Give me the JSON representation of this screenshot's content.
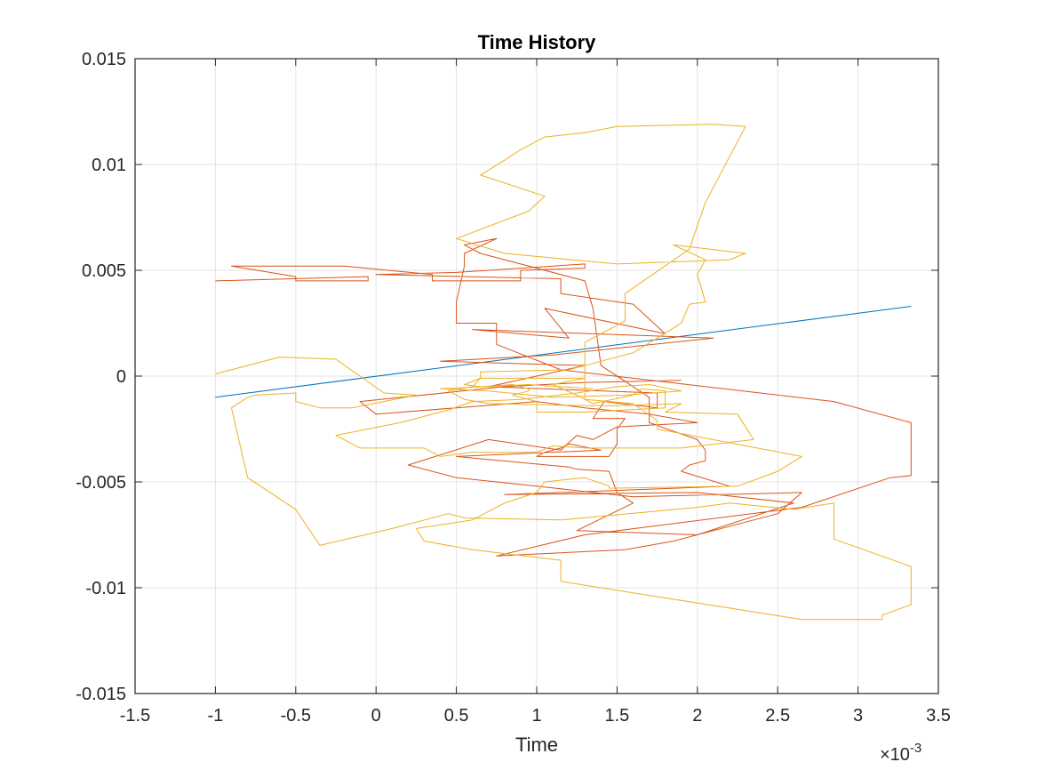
{
  "chart_data": {
    "type": "line",
    "title": "Time History",
    "xlabel": "Time",
    "ylabel": "",
    "x_exponent_label": "×10",
    "x_exponent_power": "-3",
    "xlim": [
      -1.5,
      3.5
    ],
    "ylim": [
      -0.015,
      0.015
    ],
    "x_ticks": [
      -1.5,
      -1,
      -0.5,
      0,
      0.5,
      1,
      1.5,
      2,
      2.5,
      3,
      3.5
    ],
    "x_tick_labels": [
      "-1.5",
      "-1",
      "-0.5",
      "0",
      "0.5",
      "1",
      "1.5",
      "2",
      "2.5",
      "3",
      "3.5"
    ],
    "y_ticks": [
      -0.015,
      -0.01,
      -0.005,
      0,
      0.005,
      0.01,
      0.015
    ],
    "y_tick_labels": [
      "-0.015",
      "-0.01",
      "-0.005",
      "0",
      "0.005",
      "0.01",
      "0.015"
    ],
    "grid": true,
    "colors": {
      "series_1": "#0072BD",
      "series_2": "#D95319",
      "series_3": "#EDB120"
    },
    "series": [
      {
        "color": "#0072BD",
        "x": [
          -1.0,
          3.33
        ],
        "values": [
          -0.001,
          0.0033
        ]
      },
      {
        "color": "#D95319",
        "x": [
          -1.0,
          -0.05,
          -0.05,
          -0.5,
          -0.5,
          -0.9,
          -0.2,
          0.35,
          0.35,
          0.9,
          0.9,
          1.3,
          1.3,
          0.5,
          0.0,
          1.15,
          1.15,
          1.6,
          1.8,
          1.05,
          1.2,
          0.6,
          2.1,
          1.1,
          0.4,
          1.3,
          0.7,
          1.75,
          1.75,
          1.42,
          1.35,
          1.55,
          1.5,
          1.5,
          1.45,
          1.0,
          1.05,
          1.15,
          1.2,
          1.4,
          0.5,
          1.2,
          1.25,
          1.45,
          1.5,
          1.6,
          1.25,
          2.0,
          2.6,
          2.0,
          0.8,
          2.2,
          1.9,
          1.95,
          2.05,
          2.05,
          2.0,
          1.7,
          1.7,
          1.4,
          1.35,
          1.3,
          0.65,
          0.55,
          0.75,
          0.55,
          0.55,
          0.5,
          0.5,
          0.75,
          0.75,
          1.15,
          2.85,
          3.33,
          3.33,
          3.2,
          2.65,
          1.3,
          0.75,
          1.55,
          1.85,
          2.5,
          2.65,
          1.6,
          1.0,
          0.5,
          0.2,
          0.7,
          1.15,
          1.25,
          1.35,
          1.5,
          2.0,
          1.7,
          1.3,
          1.0,
          0.5,
          0.0,
          -0.1,
          0.8,
          1.3,
          1.9
        ],
        "values": [
          0.0045,
          0.0047,
          0.0045,
          0.0045,
          0.0047,
          0.0052,
          0.0052,
          0.0048,
          0.0045,
          0.0045,
          0.005,
          0.0051,
          0.0053,
          0.0049,
          0.0048,
          0.0046,
          0.0039,
          0.0034,
          0.002,
          0.0032,
          0.0018,
          0.0022,
          0.0018,
          0.001,
          0.0007,
          0.0005,
          -0.0005,
          -0.0008,
          -0.0015,
          -0.0012,
          -0.002,
          -0.002,
          -0.0025,
          -0.0032,
          -0.0038,
          -0.0038,
          -0.0036,
          -0.0034,
          -0.0032,
          -0.0035,
          -0.0038,
          -0.0043,
          -0.0044,
          -0.0045,
          -0.0055,
          -0.006,
          -0.0073,
          -0.0075,
          -0.006,
          -0.0055,
          -0.0056,
          -0.0052,
          -0.0045,
          -0.0042,
          -0.004,
          -0.0035,
          -0.003,
          -0.0022,
          -0.001,
          0.0005,
          0.0032,
          0.0045,
          0.0058,
          0.0062,
          0.0065,
          0.0058,
          0.0052,
          0.0035,
          0.0025,
          0.0025,
          0.0015,
          0.0003,
          -0.0012,
          -0.0022,
          -0.0047,
          -0.0048,
          -0.0062,
          -0.0075,
          -0.0085,
          -0.0082,
          -0.0078,
          -0.0065,
          -0.0055,
          -0.0057,
          -0.0052,
          -0.0048,
          -0.0042,
          -0.003,
          -0.0035,
          -0.0028,
          -0.003,
          -0.0024,
          -0.0022,
          -0.0018,
          -0.0015,
          -0.0012,
          -0.0015,
          -0.0018,
          -0.0012,
          -0.0005,
          -0.0003,
          -0.0002
        ]
      },
      {
        "color": "#EDB120",
        "x": [
          -1.0,
          -0.6,
          -0.25,
          0.05,
          0.25,
          -0.15,
          -0.35,
          -0.5,
          -0.5,
          -0.75,
          -0.8,
          -0.9,
          -0.8,
          -0.5,
          -0.35,
          0.1,
          0.45,
          0.55,
          1.15,
          2.0,
          2.2,
          2.6,
          2.85,
          2.85,
          3.33,
          3.33,
          3.15,
          3.15,
          2.65,
          1.15,
          1.15,
          0.6,
          0.3,
          0.25,
          0.6,
          0.8,
          1.0,
          1.05,
          1.3,
          1.45,
          1.45,
          2.25,
          2.5,
          2.65,
          1.75,
          1.75,
          1.6,
          1.3,
          1.3,
          1.55,
          1.55,
          1.95,
          2.05,
          2.3,
          2.1,
          1.5,
          1.3,
          1.05,
          0.9,
          0.8,
          0.65,
          1.05,
          0.95,
          0.5,
          0.8,
          1.5,
          2.2,
          2.3,
          1.85,
          2.05,
          2.0,
          2.05,
          1.95,
          1.9,
          1.6,
          1.35,
          1.2,
          0.65,
          0.65,
          0.55,
          0.65,
          0.85,
          0.95,
          0.95,
          0.85,
          1.0,
          1.0,
          1.3,
          1.8,
          1.8,
          1.65,
          1.6,
          1.35,
          1.25,
          1.1,
          1.3,
          0.65,
          0.6,
          0.45,
          0.55,
          0.7,
          1.3,
          1.5,
          1.9,
          1.8,
          2.25,
          2.35,
          1.9,
          1.3,
          1.1,
          1.0,
          0.6,
          0.4,
          0.3,
          -0.1,
          -0.25,
          0.15,
          0.45,
          0.6,
          0.9,
          1.25,
          1.5,
          1.7,
          1.9,
          1.55,
          1.1,
          0.7,
          0.4,
          0.95,
          1.35
        ],
        "values": [
          0.0001,
          0.0009,
          0.0008,
          -0.0008,
          -0.0009,
          -0.0015,
          -0.0015,
          -0.0012,
          -0.0008,
          -0.0009,
          -0.001,
          -0.0015,
          -0.0048,
          -0.0063,
          -0.008,
          -0.0072,
          -0.0065,
          -0.0067,
          -0.0068,
          -0.0062,
          -0.006,
          -0.0063,
          -0.006,
          -0.0077,
          -0.009,
          -0.0108,
          -0.0113,
          -0.0115,
          -0.0115,
          -0.0097,
          -0.0087,
          -0.0082,
          -0.0078,
          -0.0072,
          -0.0068,
          -0.006,
          -0.0055,
          -0.005,
          -0.0048,
          -0.0052,
          -0.0053,
          -0.0052,
          -0.0045,
          -0.0038,
          -0.0025,
          -0.0021,
          -0.0013,
          -0.0011,
          0.0016,
          0.0026,
          0.0039,
          0.006,
          0.0082,
          0.0118,
          0.0119,
          0.0118,
          0.0115,
          0.0113,
          0.0107,
          0.0102,
          0.0095,
          0.0085,
          0.0078,
          0.0065,
          0.0058,
          0.0053,
          0.0055,
          0.0058,
          0.0062,
          0.0055,
          0.0048,
          0.0035,
          0.0034,
          0.0025,
          0.0011,
          0.0006,
          0.0003,
          0.0002,
          -0.0001,
          -0.0004,
          -0.0005,
          -0.0004,
          -0.0006,
          -0.0007,
          -0.0009,
          -0.0012,
          -0.0017,
          -0.0017,
          -0.0015,
          -0.0007,
          -0.0006,
          -0.0009,
          -0.0013,
          -0.0009,
          -0.0004,
          -0.0001,
          -0.0001,
          -0.0005,
          -0.0007,
          -0.0011,
          -0.0013,
          -0.0014,
          -0.0014,
          -0.0013,
          -0.0017,
          -0.0018,
          -0.003,
          -0.0034,
          -0.0034,
          -0.0033,
          -0.0036,
          -0.0036,
          -0.0038,
          -0.0034,
          -0.0034,
          -0.0028,
          -0.0022,
          -0.0016,
          -0.0012,
          -0.0011,
          -0.0008,
          -0.0005,
          -0.0004,
          -0.0007,
          -0.0009,
          -0.001,
          -0.0007,
          -0.0006,
          -0.0004,
          -0.0006
        ]
      }
    ]
  }
}
